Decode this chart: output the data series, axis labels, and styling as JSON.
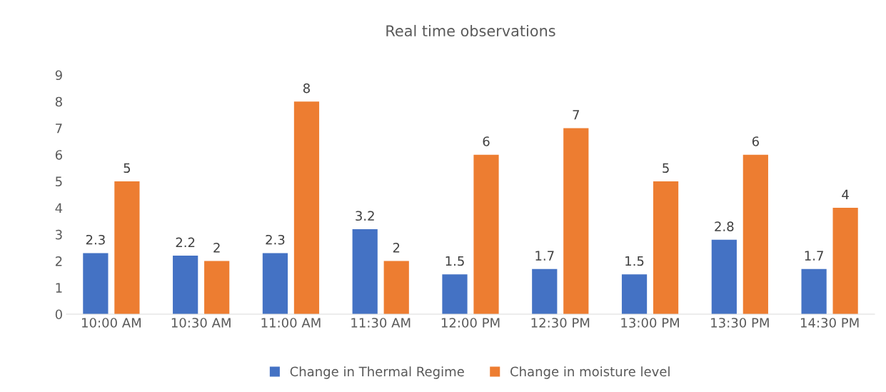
{
  "chart_data": {
    "type": "bar",
    "title": "Real time observations",
    "categories": [
      "10:00 AM",
      "10:30 AM",
      "11:00 AM",
      "11:30 AM",
      "12:00 PM",
      "12:30 PM",
      "13:00 PM",
      "13:30 PM",
      "14:30 PM"
    ],
    "series": [
      {
        "name": "Change in Thermal Regime",
        "color": "#4472c4",
        "values": [
          2.3,
          2.2,
          2.3,
          3.2,
          1.5,
          1.7,
          1.5,
          2.8,
          1.7
        ]
      },
      {
        "name": "Change in moisture level",
        "color": "#ed7d31",
        "values": [
          5,
          2,
          8,
          2,
          6,
          7,
          5,
          6,
          4
        ]
      }
    ],
    "ylim": [
      0,
      9
    ],
    "yticks": [
      0,
      1,
      2,
      3,
      4,
      5,
      6,
      7,
      8,
      9
    ],
    "grid": false,
    "legend": "bottom",
    "data_labels": true
  }
}
